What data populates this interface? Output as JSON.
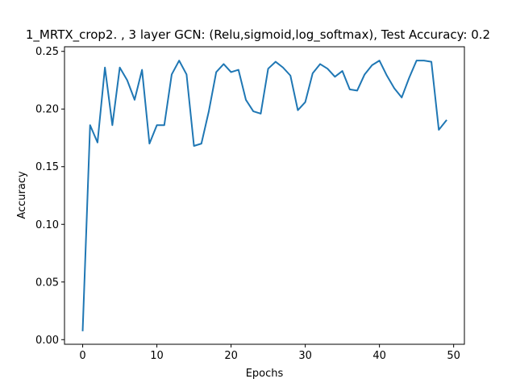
{
  "chart_data": {
    "type": "line",
    "title": "1_MRTX_crop2. , 3 layer GCN: (Relu,sigmoid,log_softmax), Test Accuracy: 0.2",
    "xlabel": "Epochs",
    "ylabel": "Accuracy",
    "xlim": [
      -2.45,
      51.45
    ],
    "ylim": [
      -0.004,
      0.254
    ],
    "xticks": [
      0,
      10,
      20,
      30,
      40,
      50
    ],
    "yticks": [
      0.0,
      0.05,
      0.1,
      0.15,
      0.2,
      0.25
    ],
    "xtick_labels": [
      "0",
      "10",
      "20",
      "30",
      "40",
      "50"
    ],
    "ytick_labels": [
      "0.00",
      "0.05",
      "0.10",
      "0.15",
      "0.20",
      "0.25"
    ],
    "grid": false,
    "line_color": "#1f77b4",
    "series": [
      {
        "x": [
          0,
          1,
          2,
          3,
          4,
          5,
          6,
          7,
          8,
          9,
          10,
          11,
          12,
          13,
          14,
          15,
          16,
          17,
          18,
          19,
          20,
          21,
          22,
          23,
          24,
          25,
          26,
          27,
          28,
          29,
          30,
          31,
          32,
          33,
          34,
          35,
          36,
          37,
          38,
          39,
          40,
          41,
          42,
          43,
          44,
          45,
          46,
          47,
          48,
          49
        ],
        "values": [
          0.008,
          0.186,
          0.171,
          0.236,
          0.186,
          0.236,
          0.225,
          0.208,
          0.234,
          0.17,
          0.186,
          0.186,
          0.23,
          0.242,
          0.23,
          0.168,
          0.17,
          0.198,
          0.232,
          0.239,
          0.232,
          0.234,
          0.208,
          0.198,
          0.196,
          0.235,
          0.241,
          0.236,
          0.229,
          0.199,
          0.206,
          0.231,
          0.239,
          0.235,
          0.228,
          0.233,
          0.217,
          0.216,
          0.23,
          0.238,
          0.242,
          0.229,
          0.218,
          0.21,
          0.227,
          0.242,
          0.242,
          0.241,
          0.182,
          0.19
        ]
      }
    ]
  }
}
